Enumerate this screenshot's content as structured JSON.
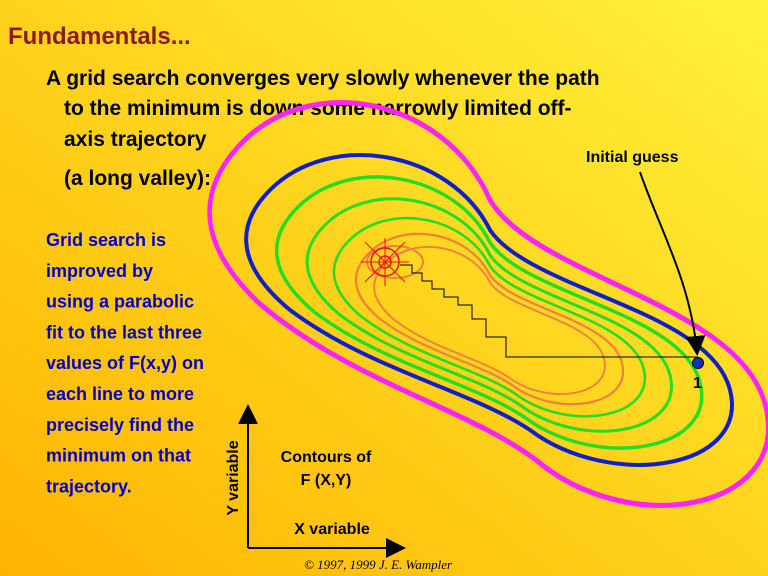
{
  "title": "Fundamentals...",
  "main_text": {
    "lines": [
      "A grid search converges very slowly whenever the path",
      "to the minimum is down some narrowly limited off-",
      "axis trajectory",
      "(a long valley):"
    ]
  },
  "side_text": {
    "lines": [
      "Grid search is",
      "improved by",
      "using a parabolic",
      "fit to the last three",
      "values of F(x,y) on",
      "each line to more",
      "precisely find the",
      "minimum on that",
      "trajectory."
    ]
  },
  "diagram": {
    "initial_guess_label": "Initial guess",
    "point_label": "1",
    "contour_label": [
      "Contours of",
      "F (X,Y)"
    ],
    "y_axis_label": "Y variable",
    "x_axis_label": "X variable"
  },
  "copyright": "© 1997, 1999 J. E. Wampler"
}
